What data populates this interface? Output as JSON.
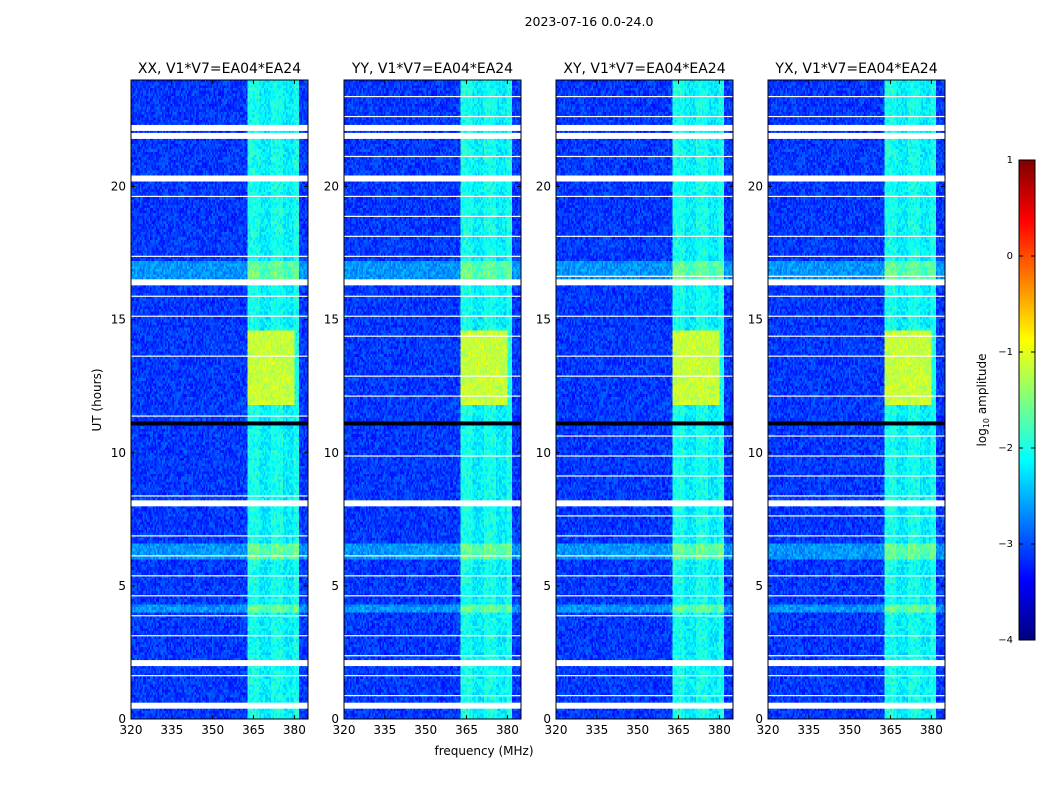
{
  "figure_title": "2023-07-16 0.0-24.0",
  "chart_data": {
    "type": "heatmap",
    "suptitle": "2023-07-16 0.0-24.0",
    "xlabel": "frequency (MHz)",
    "ylabel": "UT (hours)",
    "xlim": [
      320,
      385
    ],
    "ylim": [
      0,
      24
    ],
    "xticks": [
      320,
      335,
      350,
      365,
      380
    ],
    "yticks": [
      0,
      5,
      10,
      15,
      20
    ],
    "xtick_labels": [
      "320",
      "335",
      "350",
      "365",
      "380"
    ],
    "ytick_labels": [
      "0",
      "5",
      "10",
      "15",
      "20"
    ],
    "panels": [
      {
        "title": "XX, V1*V7=EA04*EA24",
        "polarization": "XX"
      },
      {
        "title": "YY, V1*V7=EA04*EA24",
        "polarization": "YY"
      },
      {
        "title": "XY, V1*V7=EA04*EA24",
        "polarization": "XY"
      },
      {
        "title": "YX, V1*V7=EA04*EA24",
        "polarization": "YX"
      }
    ],
    "colorbar": {
      "label": "log10 amplitude",
      "label_main": "log",
      "label_sub": "10",
      "label_rest": " amplitude",
      "range": [
        -4,
        1
      ],
      "ticks": [
        1,
        0,
        -1,
        -2,
        -3,
        -4
      ],
      "tick_labels": [
        "1",
        "0",
        "−1",
        "−2",
        "−3",
        "−4"
      ],
      "colormap": "jet",
      "colors": [
        "#00007f",
        "#0000ff",
        "#007fff",
        "#00ffff",
        "#7fff7f",
        "#ffff00",
        "#ff7f00",
        "#ff0000",
        "#7f0000"
      ]
    },
    "background_level": -3.0,
    "rfi_band_mhz": [
      363,
      382
    ],
    "strong_rfi_hours": [
      11.8,
      14.6
    ],
    "blank_hours": [
      0.5,
      2.1,
      8.1,
      16.4,
      20.3,
      21.9,
      22.2
    ],
    "dark_hours": [
      11.1
    ]
  }
}
